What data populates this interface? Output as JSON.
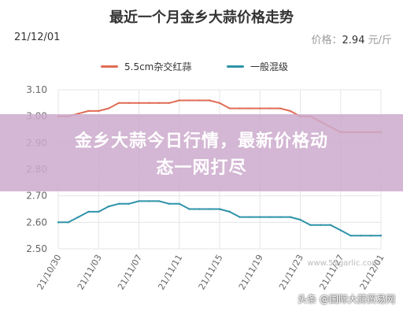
{
  "header": {
    "date": "21/12/01",
    "price_label": "价格：",
    "price_value": "2.94",
    "price_unit": "元/斤"
  },
  "headline": {
    "line1": "金乡大蒜今日行情，最新价格动",
    "line2": "态一网打尽"
  },
  "watermark": {
    "text": "头条 @国际大蒜贸易网",
    "small": "www.51garlic.com"
  },
  "colors": {
    "series1": "#e06c55",
    "series2": "#2f93a8",
    "grid": "#e6e6e6",
    "overlay": "#ccaacc"
  },
  "chart_data": {
    "type": "line",
    "title": "最近一个月金乡大蒜价格走势",
    "x": [
      "21/10/30",
      "21/10/31",
      "21/11/01",
      "21/11/02",
      "21/11/03",
      "21/11/04",
      "21/11/05",
      "21/11/06",
      "21/11/07",
      "21/11/08",
      "21/11/09",
      "21/11/10",
      "21/11/11",
      "21/11/12",
      "21/11/13",
      "21/11/14",
      "21/11/15",
      "21/11/16",
      "21/11/17",
      "21/11/18",
      "21/11/19",
      "21/11/20",
      "21/11/21",
      "21/11/22",
      "21/11/23",
      "21/11/24",
      "21/11/25",
      "21/11/26",
      "21/11/27",
      "21/11/28",
      "21/11/29",
      "21/11/30",
      "21/12/01"
    ],
    "tick_labels": [
      "21/10/30",
      "21/11/03",
      "21/11/07",
      "21/11/11",
      "21/11/15",
      "21/11/19",
      "21/11/23",
      "21/11/27",
      "21/12/01"
    ],
    "series": [
      {
        "name": "5.5cm杂交红蒜",
        "values": [
          3.0,
          3.0,
          3.01,
          3.02,
          3.02,
          3.03,
          3.05,
          3.05,
          3.05,
          3.05,
          3.05,
          3.05,
          3.06,
          3.06,
          3.06,
          3.06,
          3.05,
          3.03,
          3.03,
          3.03,
          3.03,
          3.03,
          3.03,
          3.02,
          3.0,
          3.0,
          2.98,
          2.96,
          2.94,
          2.94,
          2.94,
          2.94,
          2.94
        ]
      },
      {
        "name": "一般混级",
        "values": [
          2.6,
          2.6,
          2.62,
          2.64,
          2.64,
          2.66,
          2.67,
          2.67,
          2.68,
          2.68,
          2.68,
          2.67,
          2.67,
          2.65,
          2.65,
          2.65,
          2.65,
          2.64,
          2.62,
          2.62,
          2.62,
          2.62,
          2.62,
          2.62,
          2.61,
          2.59,
          2.59,
          2.59,
          2.57,
          2.55,
          2.55,
          2.55,
          2.55
        ]
      }
    ],
    "ylim": [
      2.5,
      3.1
    ],
    "yticks": [
      "3.10",
      "3.00",
      "2.90",
      "2.80",
      "2.70",
      "2.60",
      "2.50"
    ],
    "grid": true,
    "legend": "top"
  }
}
